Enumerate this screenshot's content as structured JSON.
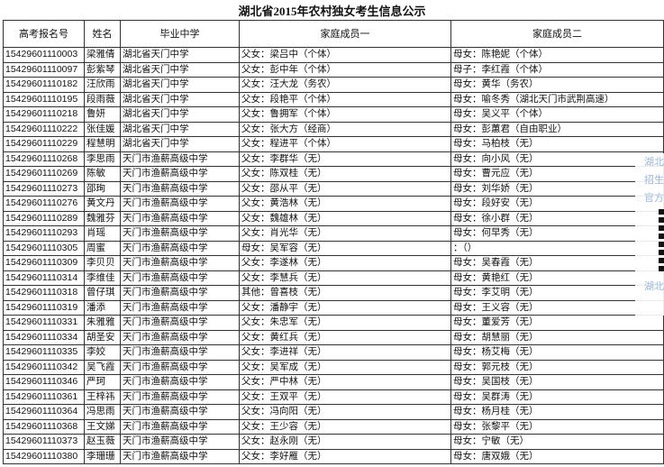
{
  "title": "湖北省2015年农村独女考生信息公示",
  "headers": [
    "高考报名号",
    "姓名",
    "毕业中学",
    "家庭成员一",
    "家庭成员二"
  ],
  "rows": [
    [
      "15429601110003",
      "梁雅倩",
      "湖北省天门中学",
      "父女：梁吕中（个体）",
      "母女：陈艳妮（个体）"
    ],
    [
      "15429601110097",
      "彭紫琴",
      "湖北省天门中学",
      "父女：彭中年（个体）",
      "母子：李红霞（个体）"
    ],
    [
      "15429601110182",
      "汪欣雨",
      "湖北省天门中学",
      "父女：汪大龙（务农）",
      "母女：黄华（务农）"
    ],
    [
      "15429601110195",
      "段雨薇",
      "湖北省天门中学",
      "父女：段艳平（个体）",
      "母女：喻冬秀（湖北天门市武荆高速）"
    ],
    [
      "15429601110218",
      "鲁妍",
      "湖北省天门中学",
      "父女：鲁拥军（个体）",
      "母女：吴义平（个体）"
    ],
    [
      "15429601110222",
      "张佳媛",
      "湖北省天门中学",
      "父女：张大方（经商）",
      "母女：彭蕙君（自由职业）"
    ],
    [
      "15429601110229",
      "程慧明",
      "湖北省天门中学",
      "父女：程进平（个体）",
      "母女：马柏枝（无）"
    ],
    [
      "15429601110268",
      "李思雨",
      "天门市渔薪高级中学",
      "父女：李群华（无）",
      "母女：向小风（无）"
    ],
    [
      "15429601110269",
      "陈敏",
      "天门市渔薪高级中学",
      "父女：陈双桂（无）",
      "母女：曹元应（无）"
    ],
    [
      "15429601110273",
      "邵珣",
      "天门市渔薪高级中学",
      "父女：邵从平（无）",
      "母女：刘华娇（无）"
    ],
    [
      "15429601110276",
      "黄文丹",
      "天门市渔薪高级中学",
      "父女：黄浩林（无）",
      "母女：段好安（无）"
    ],
    [
      "15429601110289",
      "魏雅芬",
      "天门市渔薪高级中学",
      "父女：魏雄林（无）",
      "母女：徐小群（无）"
    ],
    [
      "15429601110293",
      "肖瑶",
      "天门市渔薪高级中学",
      "父女：肖光华（无）",
      "母女：何早秀（无）"
    ],
    [
      "15429601110305",
      "周蜜",
      "天门市渔薪高级中学",
      "母女：吴军容（无）",
      "：（）"
    ],
    [
      "15429601110309",
      "李贝贝",
      "天门市渔薪高级中学",
      "父女：李遂林（无）",
      "母女：吴春霞（无）"
    ],
    [
      "15429601110314",
      "李维佳",
      "天门市渔薪高级中学",
      "父女：李慧兵（无）",
      "母女：黄艳红（无）"
    ],
    [
      "15429601110318",
      "曾仔琪",
      "天门市渔薪高级中学",
      "其他：曾喜枝（无）",
      "母女：李艾明（无）"
    ],
    [
      "15429601110319",
      "潘添",
      "天门市渔薪高级中学",
      "父女：潘静宇（无）",
      "母女：王义容（无）"
    ],
    [
      "15429601110331",
      "朱雅雅",
      "天门市渔薪高级中学",
      "父女：朱忠军（无）",
      "母女：董爱芳（无）"
    ],
    [
      "15429601110334",
      "胡圣安",
      "天门市渔薪高级中学",
      "父女：黄红兵（无）",
      "母女：胡慧丽（无）"
    ],
    [
      "15429601110335",
      "李姣",
      "天门市渔薪高级中学",
      "父女：李进祥（无）",
      "母女：杨艾梅（无）"
    ],
    [
      "15429601110342",
      "吴飞霞",
      "天门市渔薪高级中学",
      "父女：吴军成（无）",
      "母女：郭元枝（无）"
    ],
    [
      "15429601110346",
      "严珂",
      "天门市渔薪高级中学",
      "父女：严中林（无）",
      "母女：吴国枝（无）"
    ],
    [
      "15429601110361",
      "王梓祎",
      "天门市渔薪高级中学",
      "父女：王双平（无）",
      "母女：吴群涛（无）"
    ],
    [
      "15429601110364",
      "冯思雨",
      "天门市渔薪高级中学",
      "父女：冯向阳（无）",
      "母女：杨月桂（无）"
    ],
    [
      "15429601110368",
      "王文娣",
      "天门市渔薪高级中学",
      "父女：王少容（无）",
      "母女：张黎平（无）"
    ],
    [
      "15429601110373",
      "赵玉薇",
      "天门市渔薪高级中学",
      "父女：赵永刚（无）",
      "母女：宁敏（无）"
    ],
    [
      "15429601110380",
      "李珊珊",
      "天门市渔薪高级中学",
      "父女：李好雁（无）",
      "母女：唐双娥（无）"
    ]
  ],
  "side_widget": {
    "lines": [
      "湖北",
      "招生",
      "官方"
    ],
    "footer": "湖北"
  }
}
